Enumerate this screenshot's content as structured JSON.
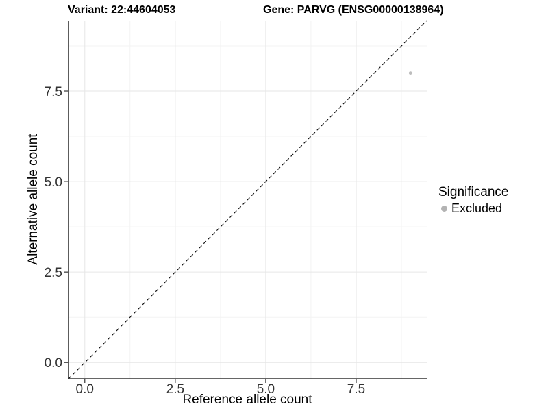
{
  "figure": {
    "title_left": "Variant: 22:44604053",
    "title_right": "Gene: PARVG (ENSG00000138964)"
  },
  "chart_data": {
    "type": "scatter",
    "title": "Variant: 22:44604053   Gene: PARVG (ENSG00000138964)",
    "xlabel": "Reference allele count",
    "ylabel": "Alternative allele count",
    "xlim": [
      -0.45,
      9.45
    ],
    "ylim": [
      -0.45,
      9.45
    ],
    "x_ticks": {
      "values": [
        0,
        2.5,
        5,
        7.5
      ],
      "labels": [
        "0.0",
        "2.5",
        "5.0",
        "7.5"
      ]
    },
    "y_ticks": {
      "values": [
        0,
        2.5,
        5,
        7.5
      ],
      "labels": [
        "0.0",
        "2.5",
        "5.0",
        "7.5"
      ]
    },
    "minor_breaks": [
      1.25,
      3.75,
      6.25,
      8.75
    ],
    "grid": "on",
    "points": [
      {
        "x": 9,
        "y": 8,
        "group": "Excluded"
      }
    ],
    "reference_line": {
      "slope": 1,
      "intercept": 0,
      "style": "dashed",
      "color": "#111111"
    },
    "legend": {
      "title": "Significance",
      "position": "right",
      "entries": [
        {
          "label": "Excluded",
          "color": "#bdbdbd"
        }
      ]
    }
  },
  "colors": {
    "background": "#ffffff",
    "grid_major": "#e6e6e6",
    "grid_minor": "#f3f3f3",
    "axis_line": "#333333",
    "tick_label": "#333333",
    "point": "#c3c3c3",
    "legend_dot": "#b3b3b3"
  }
}
